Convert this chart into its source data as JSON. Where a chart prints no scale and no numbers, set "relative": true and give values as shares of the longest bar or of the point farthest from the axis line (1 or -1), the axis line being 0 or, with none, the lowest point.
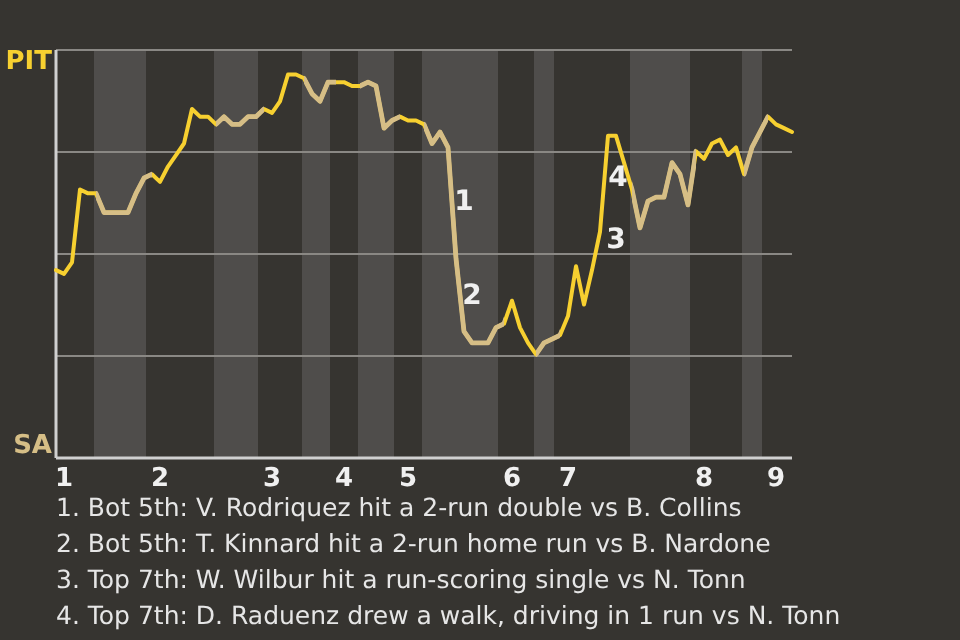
{
  "chart_data": {
    "type": "line",
    "relative": true,
    "categories": [
      null,
      "1",
      null,
      null,
      null,
      null,
      null,
      null,
      null,
      null,
      null,
      null,
      null,
      "2",
      null,
      null,
      null,
      null,
      null,
      null,
      null,
      null,
      null,
      null,
      null,
      null,
      null,
      "3",
      null,
      null,
      null,
      null,
      null,
      null,
      null,
      null,
      "4",
      null,
      null,
      null,
      null,
      null,
      null,
      null,
      "5",
      null,
      null,
      null,
      null,
      null,
      null,
      null,
      null,
      null,
      null,
      null,
      null,
      "6",
      null,
      null,
      null,
      null,
      null,
      null,
      "7",
      null,
      null,
      null,
      null,
      null,
      null,
      null,
      null,
      null,
      null,
      null,
      null,
      null,
      null,
      null,
      null,
      "8",
      null,
      null,
      null,
      null,
      null,
      null,
      null,
      null,
      "9",
      null,
      null
    ],
    "series": [
      {
        "color": "#f7d030",
        "values": [
          0.49,
          0.48,
          0.51,
          0.7,
          0.69,
          0.69,
          0.64,
          0.64,
          0.64,
          0.64,
          0.69,
          0.73,
          0.74,
          0.72,
          0.76,
          0.79,
          0.82,
          0.91,
          0.89,
          0.89,
          0.87,
          0.89,
          0.87,
          0.87,
          0.89,
          0.89,
          0.91,
          0.9,
          0.93,
          1,
          1,
          0.99,
          0.95,
          0.93,
          0.98,
          0.98,
          0.98,
          0.97,
          0.97,
          0.98,
          0.97,
          0.86,
          0.88,
          0.89,
          0.88,
          0.88,
          0.87,
          0.82,
          0.85,
          0.81,
          0.52,
          0.33,
          0.3,
          0.3,
          0.3,
          0.34,
          0.35,
          0.41,
          0.34,
          0.3,
          0.27,
          0.3,
          0.31,
          0.32,
          0.37,
          0.5,
          0.4,
          0.49,
          0.59,
          0.84,
          0.84,
          0.77,
          0.7,
          0.6,
          0.67,
          0.68,
          0.68,
          0.77,
          0.74,
          0.66,
          0.8,
          0.78,
          0.82,
          0.83,
          0.79,
          0.81,
          0.74,
          0.81,
          0.85,
          0.89,
          0.87,
          0.86,
          0.85
        ],
        "colors": [
          "#f7d030",
          "#f7d030",
          "#f7d030",
          "#f7d030",
          "#f7d030",
          "#d6be86",
          "#d6be86",
          "#d6be86",
          "#d6be86",
          "#d6be86",
          "#d6be86",
          "#d6be86",
          "#f7d030",
          "#f7d030",
          "#f7d030",
          "#f7d030",
          "#f7d030",
          "#f7d030",
          "#f7d030",
          "#f7d030",
          "#d6be86",
          "#d6be86",
          "#d6be86",
          "#d6be86",
          "#d6be86",
          "#d6be86",
          "#f7d030",
          "#f7d030",
          "#f7d030",
          "#f7d030",
          "#f7d030",
          "#d6be86",
          "#d6be86",
          "#d6be86",
          "#d6be86",
          "#f7d030",
          "#f7d030",
          "#f7d030",
          "#d6be86",
          "#d6be86",
          "#d6be86",
          "#d6be86",
          "#d6be86",
          "#f7d030",
          "#f7d030",
          "#f7d030",
          "#d6be86",
          "#d6be86",
          "#d6be86",
          "#d6be86",
          "#d6be86",
          "#d6be86",
          "#d6be86",
          "#d6be86",
          "#d6be86",
          "#d6be86",
          "#f7d030",
          "#f7d030",
          "#f7d030",
          "#f7d030",
          "#d6be86",
          "#d6be86",
          "#d6be86",
          "#f7d030",
          "#f7d030",
          "#f7d030",
          "#f7d030",
          "#f7d030",
          "#f7d030",
          "#f7d030",
          "#f7d030",
          "#f7d030",
          "#d6be86",
          "#d6be86",
          "#d6be86",
          "#d6be86",
          "#d6be86",
          "#d6be86",
          "#d6be86",
          "#d6be86",
          "#f7d030",
          "#f7d030",
          "#f7d030",
          "#f7d030",
          "#f7d030",
          "#f7d030",
          "#d6be86",
          "#d6be86",
          "#d6be86",
          "#f7d030",
          "#f7d030",
          "#f7d030",
          "#f7d030"
        ]
      }
    ],
    "grid": "y",
    "annotations": [
      "PIT",
      "SA",
      "1",
      "2",
      "3",
      "4",
      "1. Bot 5th: V. Rodriquez hit a 2-run double vs B. Collins",
      "2. Bot 5th: T. Kinnard hit a 2-run home run vs B. Nardone",
      "3. Top 7th: W. Wilbur hit a run-scoring single vs N. Tonn",
      "4. Top 7th: D. Raduenz drew a walk, driving in 1 run vs N. Tonn"
    ]
  }
}
